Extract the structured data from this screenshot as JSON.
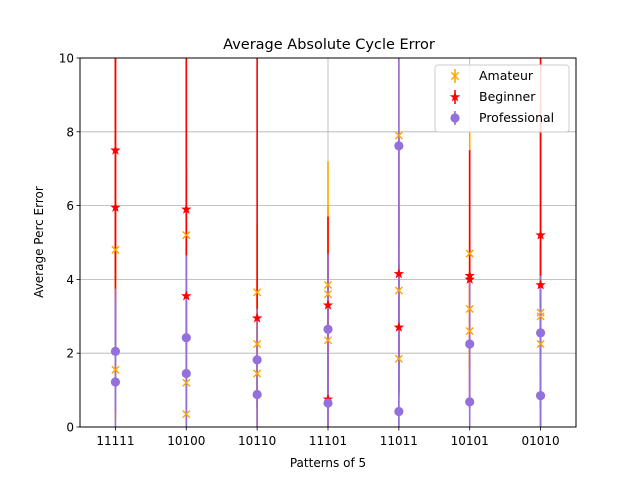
{
  "chart_data": {
    "type": "scatter",
    "title": "Average Absolute Cycle Error",
    "xlabel": "Patterns of 5",
    "ylabel": "Average Perc Error",
    "categories": [
      "11111",
      "10100",
      "10110",
      "11101",
      "11011",
      "10101",
      "01010"
    ],
    "ylim": [
      0,
      10
    ],
    "yticks": [
      0,
      2,
      4,
      6,
      8,
      10
    ],
    "grid": true,
    "legend_position": "top-right",
    "series": [
      {
        "name": "Amateur",
        "color": "#ffa500",
        "marker": "x",
        "points": [
          {
            "x": "11111",
            "y": 1.55,
            "err_lo": 0.2,
            "err_hi": 5.0
          },
          {
            "x": "11111",
            "y": 4.8,
            "err_lo": 3.0,
            "err_hi": 10.0
          },
          {
            "x": "10100",
            "y": 0.35,
            "err_lo": 0.0,
            "err_hi": 3.0
          },
          {
            "x": "10100",
            "y": 1.2,
            "err_lo": 0.0,
            "err_hi": 4.0
          },
          {
            "x": "10100",
            "y": 5.2,
            "err_lo": 2.5,
            "err_hi": 10.0
          },
          {
            "x": "10110",
            "y": 1.45,
            "err_lo": 0.5,
            "err_hi": 3.0
          },
          {
            "x": "10110",
            "y": 2.25,
            "err_lo": 1.0,
            "err_hi": 4.0
          },
          {
            "x": "10110",
            "y": 3.65,
            "err_lo": 2.0,
            "err_hi": 5.5
          },
          {
            "x": "11101",
            "y": 2.35,
            "err_lo": 0.5,
            "err_hi": 5.0
          },
          {
            "x": "11101",
            "y": 3.6,
            "err_lo": 1.5,
            "err_hi": 6.0
          },
          {
            "x": "11101",
            "y": 3.85,
            "err_lo": 0.5,
            "err_hi": 7.2
          },
          {
            "x": "11011",
            "y": 1.85,
            "err_lo": 0.8,
            "err_hi": 3.0
          },
          {
            "x": "11011",
            "y": 3.7,
            "err_lo": 1.5,
            "err_hi": 6.0
          },
          {
            "x": "11011",
            "y": 7.9,
            "err_lo": 5.0,
            "err_hi": 10.0
          },
          {
            "x": "10101",
            "y": 2.6,
            "err_lo": 1.0,
            "err_hi": 4.0
          },
          {
            "x": "10101",
            "y": 3.2,
            "err_lo": 1.5,
            "err_hi": 5.0
          },
          {
            "x": "10101",
            "y": 4.7,
            "err_lo": 1.5,
            "err_hi": 8.0
          },
          {
            "x": "01010",
            "y": 2.25,
            "err_lo": 0.5,
            "err_hi": 4.0
          },
          {
            "x": "01010",
            "y": 3.0,
            "err_lo": 1.0,
            "err_hi": 5.0
          },
          {
            "x": "01010",
            "y": 3.1,
            "err_lo": 1.0,
            "err_hi": 5.0
          }
        ]
      },
      {
        "name": "Beginner",
        "color": "#ff0000",
        "marker": "star",
        "points": [
          {
            "x": "11111",
            "y": 5.95,
            "err_lo": 2.0,
            "err_hi": 10.0
          },
          {
            "x": "11111",
            "y": 7.5,
            "err_lo": 4.0,
            "err_hi": 10.0
          },
          {
            "x": "10100",
            "y": 3.55,
            "err_lo": 0.5,
            "err_hi": 7.0
          },
          {
            "x": "10100",
            "y": 5.9,
            "err_lo": 2.0,
            "err_hi": 10.0
          },
          {
            "x": "10110",
            "y": 2.95,
            "err_lo": 0.0,
            "err_hi": 10.0
          },
          {
            "x": "11101",
            "y": 0.75,
            "err_lo": 0.0,
            "err_hi": 2.0
          },
          {
            "x": "11101",
            "y": 3.3,
            "err_lo": 1.0,
            "err_hi": 5.7
          },
          {
            "x": "11011",
            "y": 2.7,
            "err_lo": 0.9,
            "err_hi": 4.4
          },
          {
            "x": "11011",
            "y": 4.15,
            "err_lo": 1.0,
            "err_hi": 8.0
          },
          {
            "x": "10101",
            "y": 4.0,
            "err_lo": 0.5,
            "err_hi": 7.5
          },
          {
            "x": "10101",
            "y": 4.1,
            "err_lo": 0.5,
            "err_hi": 7.5
          },
          {
            "x": "01010",
            "y": 3.85,
            "err_lo": 0.0,
            "err_hi": 8.7
          },
          {
            "x": "01010",
            "y": 5.2,
            "err_lo": 1.5,
            "err_hi": 10.0
          }
        ]
      },
      {
        "name": "Professional",
        "color": "#9370db",
        "marker": "circle",
        "points": [
          {
            "x": "11111",
            "y": 1.22,
            "err_lo": 0.0,
            "err_hi": 3.5
          },
          {
            "x": "11111",
            "y": 2.05,
            "err_lo": 0.4,
            "err_hi": 3.75
          },
          {
            "x": "10100",
            "y": 1.45,
            "err_lo": 0.0,
            "err_hi": 3.5
          },
          {
            "x": "10100",
            "y": 2.42,
            "err_lo": 0.2,
            "err_hi": 4.65
          },
          {
            "x": "10110",
            "y": 0.88,
            "err_lo": 0.0,
            "err_hi": 2.0
          },
          {
            "x": "10110",
            "y": 1.82,
            "err_lo": 0.5,
            "err_hi": 3.2
          },
          {
            "x": "11101",
            "y": 0.65,
            "err_lo": 0.0,
            "err_hi": 2.0
          },
          {
            "x": "11101",
            "y": 2.65,
            "err_lo": 0.6,
            "err_hi": 4.7
          },
          {
            "x": "11011",
            "y": 0.42,
            "err_lo": 0.0,
            "err_hi": 1.5
          },
          {
            "x": "11011",
            "y": 7.62,
            "err_lo": 0.0,
            "err_hi": 10.0
          },
          {
            "x": "10101",
            "y": 0.68,
            "err_lo": 0.0,
            "err_hi": 1.8
          },
          {
            "x": "10101",
            "y": 2.25,
            "err_lo": 0.5,
            "err_hi": 4.0
          },
          {
            "x": "01010",
            "y": 0.85,
            "err_lo": 0.0,
            "err_hi": 2.0
          },
          {
            "x": "01010",
            "y": 2.55,
            "err_lo": 0.5,
            "err_hi": 4.1
          }
        ]
      }
    ]
  }
}
